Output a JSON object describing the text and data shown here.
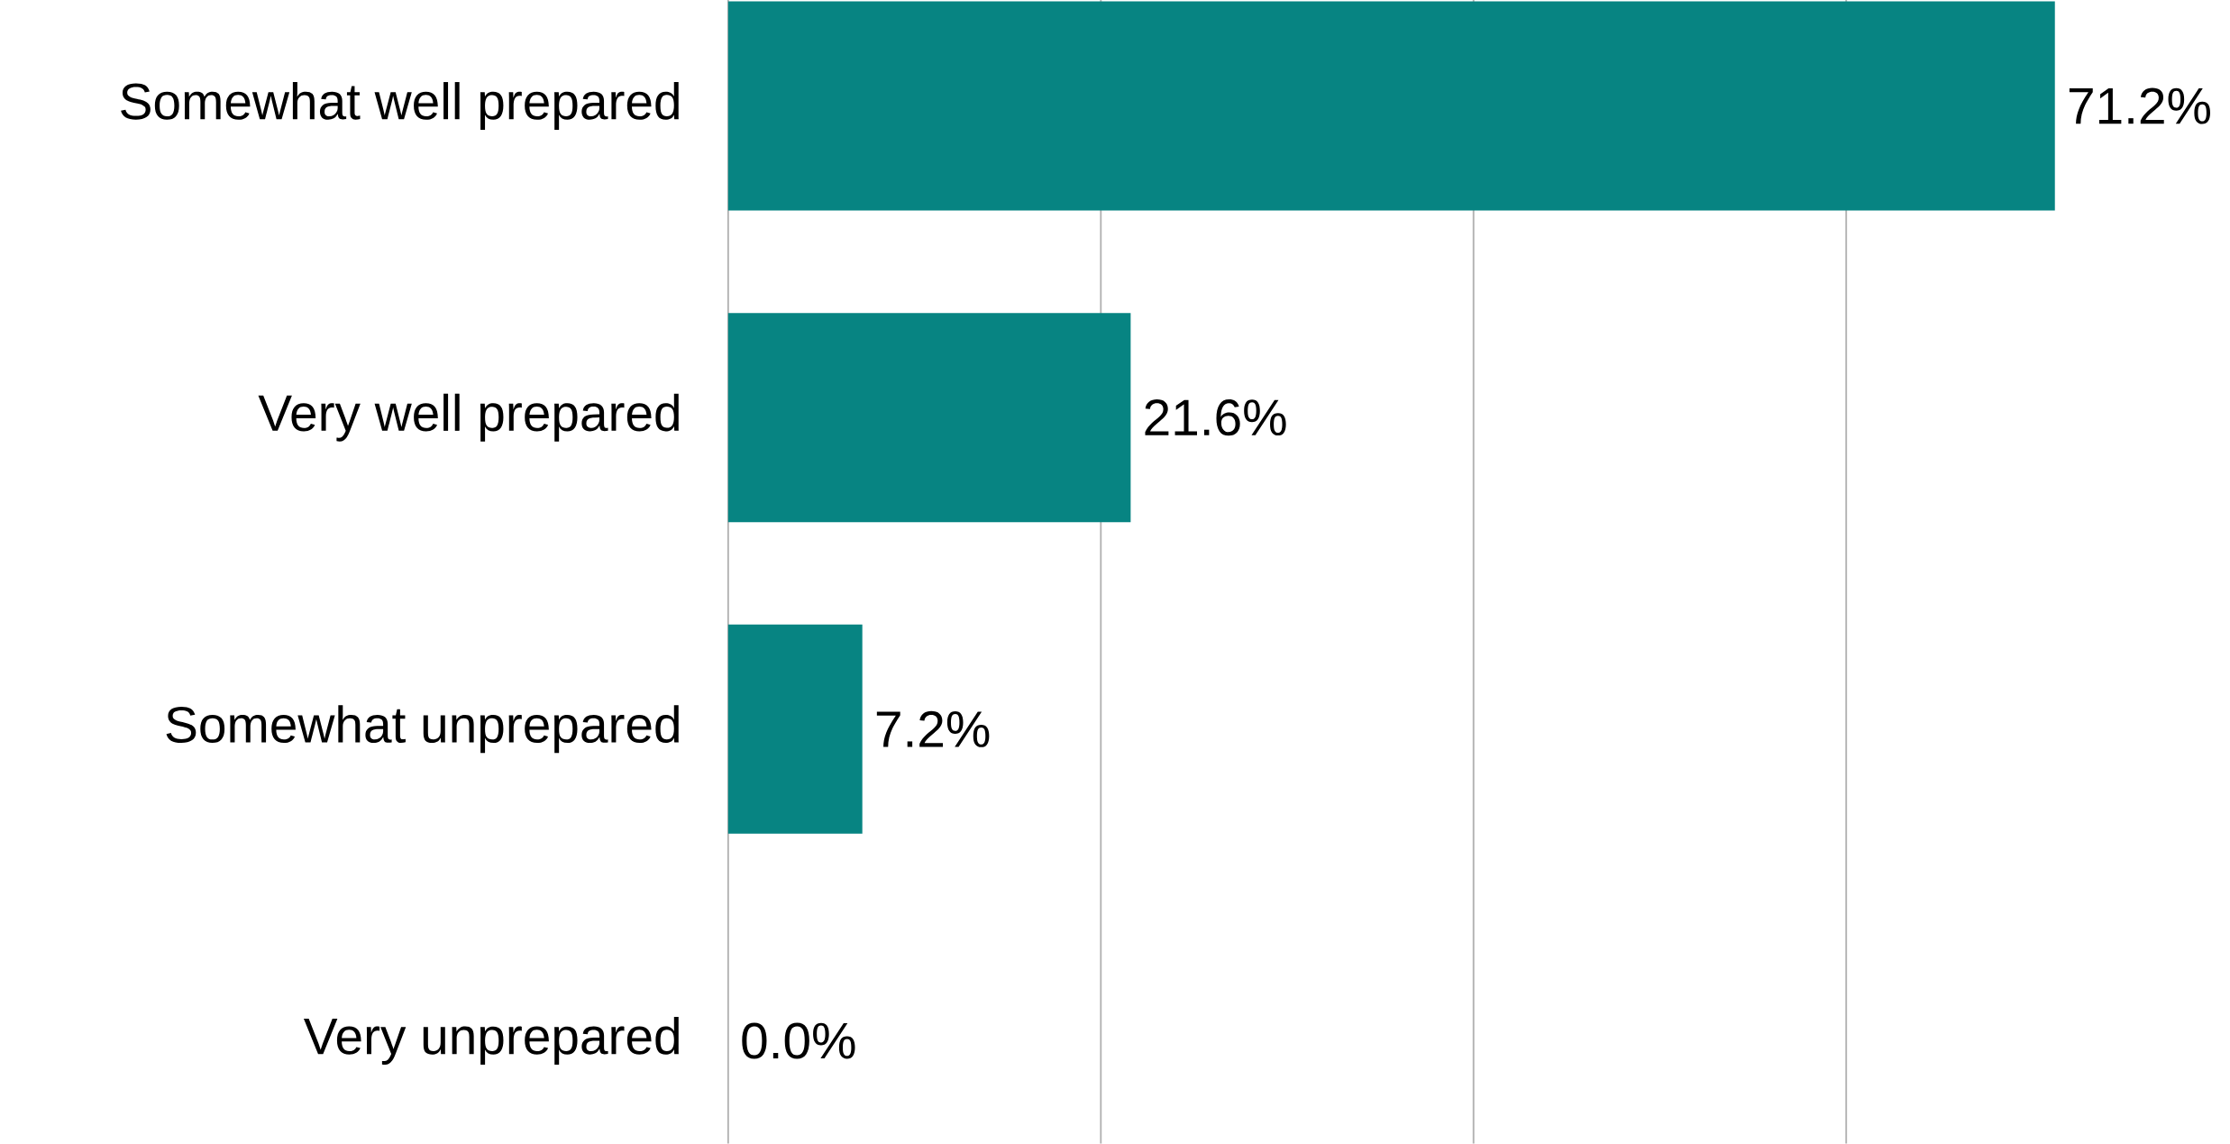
{
  "chart_data": {
    "type": "bar",
    "orientation": "horizontal",
    "categories": [
      "Somewhat well prepared",
      "Very well prepared",
      "Somewhat unprepared",
      "Very unprepared"
    ],
    "values": [
      71.2,
      21.6,
      7.2,
      0.0
    ],
    "value_labels": [
      "71.2%",
      "21.6%",
      "7.2%",
      "0.0%"
    ],
    "color": "#078482",
    "xticks": [
      {
        "value": 0,
        "label": null
      },
      {
        "value": 20,
        "label": null
      },
      {
        "value": 40,
        "label": null
      },
      {
        "value": 60,
        "label": null
      }
    ],
    "tick_labels": "y",
    "grid": "x"
  }
}
